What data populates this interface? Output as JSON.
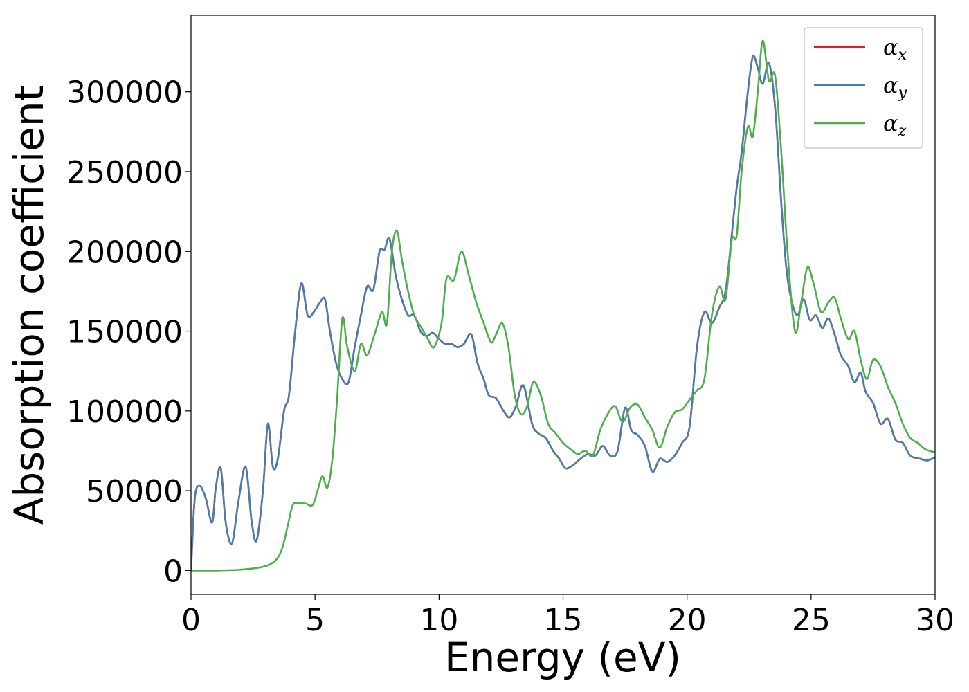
{
  "chart_data": {
    "type": "line",
    "xlabel": "Energy (eV)",
    "ylabel": "Absorption coefficient",
    "xlim": [
      0,
      30
    ],
    "ylim": [
      -15000,
      348000
    ],
    "xticks": [
      0,
      5,
      10,
      15,
      20,
      25,
      30
    ],
    "xtick_labels": [
      "0",
      "5",
      "10",
      "15",
      "20",
      "25",
      "30"
    ],
    "yticks": [
      0,
      50000,
      100000,
      150000,
      200000,
      250000,
      300000
    ],
    "ytick_labels": [
      "0",
      "50000",
      "100000",
      "150000",
      "200000",
      "250000",
      "300000"
    ],
    "grid": false,
    "legend_position": "top-right",
    "series": [
      {
        "name": "αx",
        "legend_symbol": "α",
        "legend_subscript": "x",
        "color": "#e41a1c",
        "x": [
          0,
          0.15,
          0.35,
          0.6,
          0.85,
          1.0,
          1.2,
          1.4,
          1.65,
          1.9,
          2.2,
          2.45,
          2.65,
          2.9,
          3.1,
          3.3,
          3.5,
          3.75,
          3.95,
          4.2,
          4.45,
          4.7,
          4.95,
          5.2,
          5.4,
          5.6,
          5.85,
          6.1,
          6.35,
          6.6,
          6.85,
          7.1,
          7.35,
          7.6,
          7.8,
          8.0,
          8.25,
          8.5,
          8.75,
          9.0,
          9.25,
          9.5,
          9.75,
          10.0,
          10.25,
          10.5,
          10.75,
          11.0,
          11.3,
          11.55,
          11.8,
          12.0,
          12.3,
          12.6,
          12.85,
          13.1,
          13.4,
          13.75,
          14.0,
          14.3,
          14.6,
          14.85,
          15.1,
          15.4,
          15.7,
          16.0,
          16.3,
          16.6,
          16.9,
          17.2,
          17.5,
          17.75,
          18.0,
          18.3,
          18.6,
          18.9,
          19.2,
          19.5,
          19.8,
          20.1,
          20.4,
          20.7,
          21.0,
          21.3,
          21.55,
          21.8,
          22.0,
          22.2,
          22.45,
          22.65,
          22.85,
          23.05,
          23.3,
          23.55,
          23.8,
          24.0,
          24.2,
          24.45,
          24.7,
          24.95,
          25.2,
          25.45,
          25.7,
          25.95,
          26.2,
          26.5,
          26.75,
          27.0,
          27.2,
          27.5,
          27.8,
          28.1,
          28.4,
          28.7,
          29.0,
          29.4,
          29.7,
          30.0
        ],
        "y": [
          0,
          45000,
          53000,
          45000,
          30000,
          52000,
          64000,
          30000,
          17000,
          42000,
          65000,
          30000,
          19000,
          50000,
          92000,
          65000,
          70000,
          100000,
          110000,
          150000,
          180000,
          160000,
          162000,
          168000,
          170000,
          150000,
          130000,
          120000,
          118000,
          140000,
          160000,
          178000,
          176000,
          200000,
          201000,
          208000,
          185000,
          170000,
          160000,
          160000,
          150000,
          147000,
          149000,
          145000,
          142000,
          142000,
          140000,
          142000,
          148000,
          130000,
          120000,
          110000,
          108000,
          100000,
          96000,
          103000,
          116000,
          92000,
          86000,
          83000,
          75000,
          70000,
          64000,
          66000,
          70000,
          73000,
          72000,
          78000,
          72000,
          75000,
          102000,
          88000,
          85000,
          78000,
          62000,
          70000,
          68000,
          72000,
          80000,
          90000,
          140000,
          162000,
          155000,
          165000,
          175000,
          210000,
          240000,
          262000,
          300000,
          322000,
          315000,
          305000,
          318000,
          290000,
          230000,
          190000,
          170000,
          160000,
          170000,
          157000,
          160000,
          152000,
          158000,
          148000,
          135000,
          128000,
          118000,
          124000,
          112000,
          105000,
          92000,
          95000,
          82000,
          80000,
          72000,
          70000,
          69000,
          71000
        ]
      },
      {
        "name": "αy",
        "legend_symbol": "α",
        "legend_subscript": "y",
        "color": "#4a7cb0",
        "x": [
          0,
          0.15,
          0.35,
          0.6,
          0.85,
          1.0,
          1.2,
          1.4,
          1.65,
          1.9,
          2.2,
          2.45,
          2.65,
          2.9,
          3.1,
          3.3,
          3.5,
          3.75,
          3.95,
          4.2,
          4.45,
          4.7,
          4.95,
          5.2,
          5.4,
          5.6,
          5.85,
          6.1,
          6.35,
          6.6,
          6.85,
          7.1,
          7.35,
          7.6,
          7.8,
          8.0,
          8.25,
          8.5,
          8.75,
          9.0,
          9.25,
          9.5,
          9.75,
          10.0,
          10.25,
          10.5,
          10.75,
          11.0,
          11.3,
          11.55,
          11.8,
          12.0,
          12.3,
          12.6,
          12.85,
          13.1,
          13.4,
          13.75,
          14.0,
          14.3,
          14.6,
          14.85,
          15.1,
          15.4,
          15.7,
          16.0,
          16.3,
          16.6,
          16.9,
          17.2,
          17.5,
          17.75,
          18.0,
          18.3,
          18.6,
          18.9,
          19.2,
          19.5,
          19.8,
          20.1,
          20.4,
          20.7,
          21.0,
          21.3,
          21.55,
          21.8,
          22.0,
          22.2,
          22.45,
          22.65,
          22.85,
          23.05,
          23.3,
          23.55,
          23.8,
          24.0,
          24.2,
          24.45,
          24.7,
          24.95,
          25.2,
          25.45,
          25.7,
          25.95,
          26.2,
          26.5,
          26.75,
          27.0,
          27.2,
          27.5,
          27.8,
          28.1,
          28.4,
          28.7,
          29.0,
          29.4,
          29.7,
          30.0
        ],
        "y": [
          0,
          45000,
          53000,
          45000,
          30000,
          52000,
          64000,
          30000,
          17000,
          42000,
          65000,
          30000,
          19000,
          50000,
          92000,
          65000,
          70000,
          100000,
          110000,
          150000,
          180000,
          160000,
          162000,
          168000,
          170000,
          150000,
          130000,
          120000,
          118000,
          140000,
          160000,
          178000,
          176000,
          200000,
          201000,
          208000,
          185000,
          170000,
          160000,
          160000,
          150000,
          147000,
          149000,
          145000,
          142000,
          142000,
          140000,
          142000,
          148000,
          130000,
          120000,
          110000,
          108000,
          100000,
          96000,
          103000,
          116000,
          92000,
          86000,
          83000,
          75000,
          70000,
          64000,
          66000,
          70000,
          73000,
          72000,
          78000,
          72000,
          75000,
          102000,
          88000,
          85000,
          78000,
          62000,
          70000,
          68000,
          72000,
          80000,
          90000,
          140000,
          162000,
          155000,
          165000,
          175000,
          210000,
          240000,
          262000,
          300000,
          322000,
          315000,
          305000,
          318000,
          290000,
          230000,
          190000,
          170000,
          160000,
          170000,
          157000,
          160000,
          152000,
          158000,
          148000,
          135000,
          128000,
          118000,
          124000,
          112000,
          105000,
          92000,
          95000,
          82000,
          80000,
          72000,
          70000,
          69000,
          71000
        ]
      },
      {
        "name": "αz",
        "legend_symbol": "α",
        "legend_subscript": "z",
        "color": "#4daf4a",
        "x": [
          0,
          1.0,
          2.0,
          2.8,
          3.2,
          3.5,
          3.7,
          3.9,
          4.1,
          4.3,
          4.6,
          4.9,
          5.1,
          5.3,
          5.5,
          5.7,
          5.9,
          6.1,
          6.3,
          6.6,
          6.85,
          7.1,
          7.4,
          7.7,
          7.9,
          8.1,
          8.3,
          8.5,
          8.75,
          9.0,
          9.3,
          9.55,
          9.8,
          10.1,
          10.3,
          10.6,
          10.9,
          11.2,
          11.5,
          11.8,
          12.1,
          12.3,
          12.55,
          12.8,
          13.05,
          13.3,
          13.55,
          13.8,
          14.1,
          14.4,
          14.7,
          15.0,
          15.3,
          15.6,
          15.9,
          16.2,
          16.5,
          16.8,
          17.1,
          17.4,
          17.7,
          18.0,
          18.3,
          18.6,
          18.9,
          19.2,
          19.5,
          19.8,
          20.1,
          20.4,
          20.7,
          21.0,
          21.3,
          21.55,
          21.8,
          22.0,
          22.2,
          22.45,
          22.65,
          22.85,
          23.05,
          23.3,
          23.55,
          23.8,
          24.05,
          24.35,
          24.6,
          24.85,
          25.1,
          25.4,
          25.7,
          25.95,
          26.2,
          26.5,
          26.75,
          27.0,
          27.25,
          27.5,
          27.8,
          28.1,
          28.4,
          28.7,
          29.0,
          29.3,
          29.6,
          30.0
        ],
        "y": [
          0,
          0,
          500,
          2000,
          4000,
          8000,
          15000,
          28000,
          41000,
          42000,
          42000,
          41000,
          50000,
          59000,
          52000,
          70000,
          110000,
          158000,
          140000,
          125000,
          142000,
          135000,
          148000,
          162000,
          155000,
          200000,
          213000,
          195000,
          175000,
          160000,
          152000,
          145000,
          140000,
          155000,
          183000,
          182000,
          200000,
          185000,
          168000,
          155000,
          143000,
          148000,
          155000,
          140000,
          110000,
          98000,
          103000,
          118000,
          110000,
          92000,
          86000,
          80000,
          76000,
          73000,
          75000,
          72000,
          88000,
          98000,
          103000,
          93000,
          102000,
          104000,
          96000,
          88000,
          77000,
          90000,
          99000,
          101000,
          107000,
          113000,
          120000,
          160000,
          178000,
          170000,
          207000,
          210000,
          250000,
          278000,
          272000,
          300000,
          332000,
          307000,
          310000,
          262000,
          200000,
          150000,
          168000,
          190000,
          180000,
          162000,
          168000,
          171000,
          158000,
          145000,
          150000,
          132000,
          120000,
          132000,
          128000,
          115000,
          105000,
          92000,
          83000,
          80000,
          76000,
          74000
        ]
      }
    ]
  }
}
